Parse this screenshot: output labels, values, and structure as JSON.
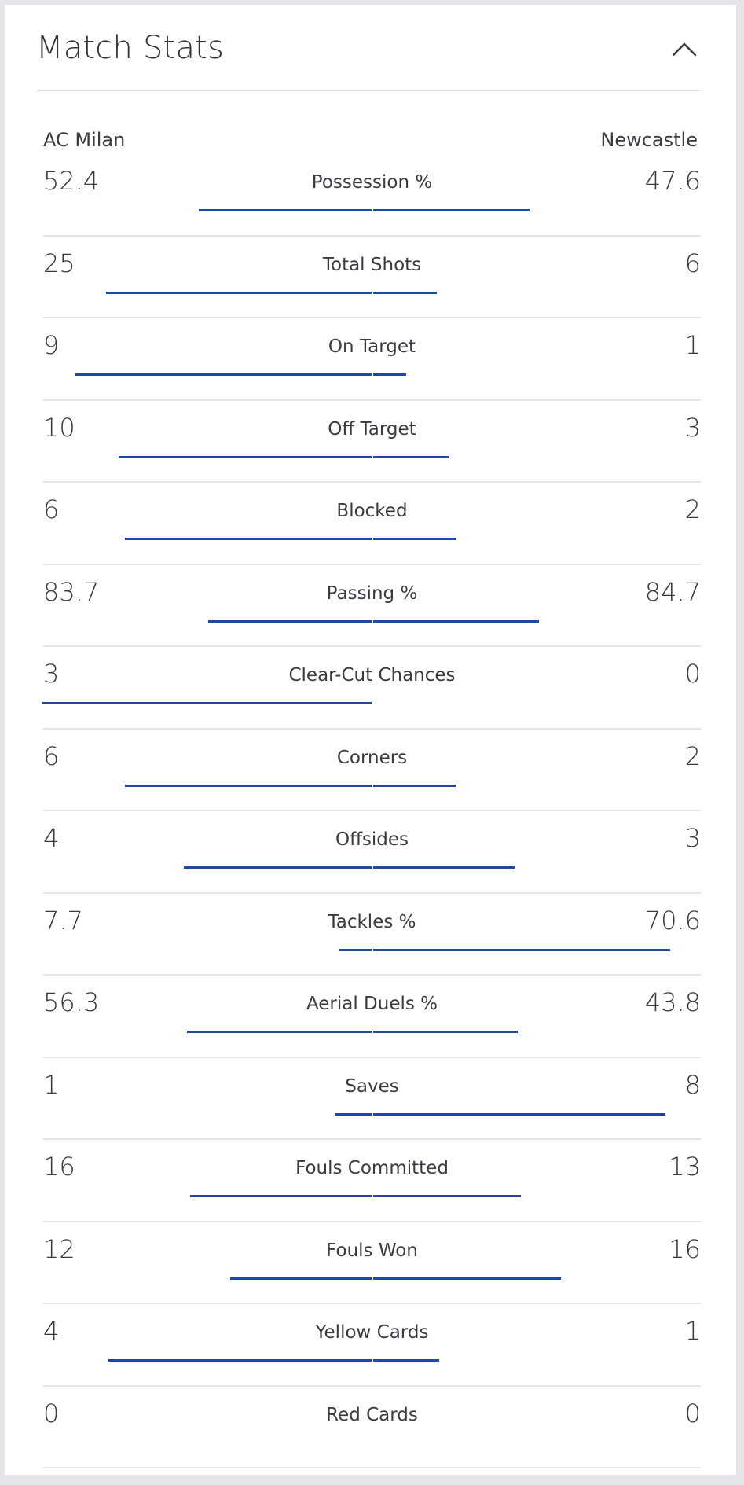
{
  "widget": {
    "title": "Match Stats",
    "collapse_icon": "chevron-up-icon"
  },
  "teams": {
    "home": "AC Milan",
    "away": "Newcastle"
  },
  "colors": {
    "bar": "#1e48a8"
  },
  "stats": [
    {
      "label": "Possession %",
      "home": "52.4",
      "away": "47.6",
      "home_bar": 52.4,
      "away_bar": 47.6
    },
    {
      "label": "Total Shots",
      "home": "25",
      "away": "6",
      "home_bar": 80.6,
      "away_bar": 19.4
    },
    {
      "label": "On Target",
      "home": "9",
      "away": "1",
      "home_bar": 90,
      "away_bar": 10
    },
    {
      "label": "Off Target",
      "home": "10",
      "away": "3",
      "home_bar": 76.9,
      "away_bar": 23.1
    },
    {
      "label": "Blocked",
      "home": "6",
      "away": "2",
      "home_bar": 75,
      "away_bar": 25
    },
    {
      "label": "Passing %",
      "home": "83.7",
      "away": "84.7",
      "home_bar": 49.7,
      "away_bar": 50.3
    },
    {
      "label": "Clear-Cut Chances",
      "home": "3",
      "away": "0",
      "home_bar": 100,
      "away_bar": 0
    },
    {
      "label": "Corners",
      "home": "6",
      "away": "2",
      "home_bar": 75,
      "away_bar": 25
    },
    {
      "label": "Offsides",
      "home": "4",
      "away": "3",
      "home_bar": 57.1,
      "away_bar": 42.9
    },
    {
      "label": "Tackles %",
      "home": "7.7",
      "away": "70.6",
      "home_bar": 9.8,
      "away_bar": 90.2
    },
    {
      "label": "Aerial Duels %",
      "home": "56.3",
      "away": "43.8",
      "home_bar": 56.2,
      "away_bar": 43.8
    },
    {
      "label": "Saves",
      "home": "1",
      "away": "8",
      "home_bar": 11.1,
      "away_bar": 88.9
    },
    {
      "label": "Fouls Committed",
      "home": "16",
      "away": "13",
      "home_bar": 55.2,
      "away_bar": 44.8
    },
    {
      "label": "Fouls Won",
      "home": "12",
      "away": "16",
      "home_bar": 42.9,
      "away_bar": 57.1
    },
    {
      "label": "Yellow Cards",
      "home": "4",
      "away": "1",
      "home_bar": 80,
      "away_bar": 20
    },
    {
      "label": "Red Cards",
      "home": "0",
      "away": "0",
      "home_bar": 0,
      "away_bar": 0
    }
  ]
}
